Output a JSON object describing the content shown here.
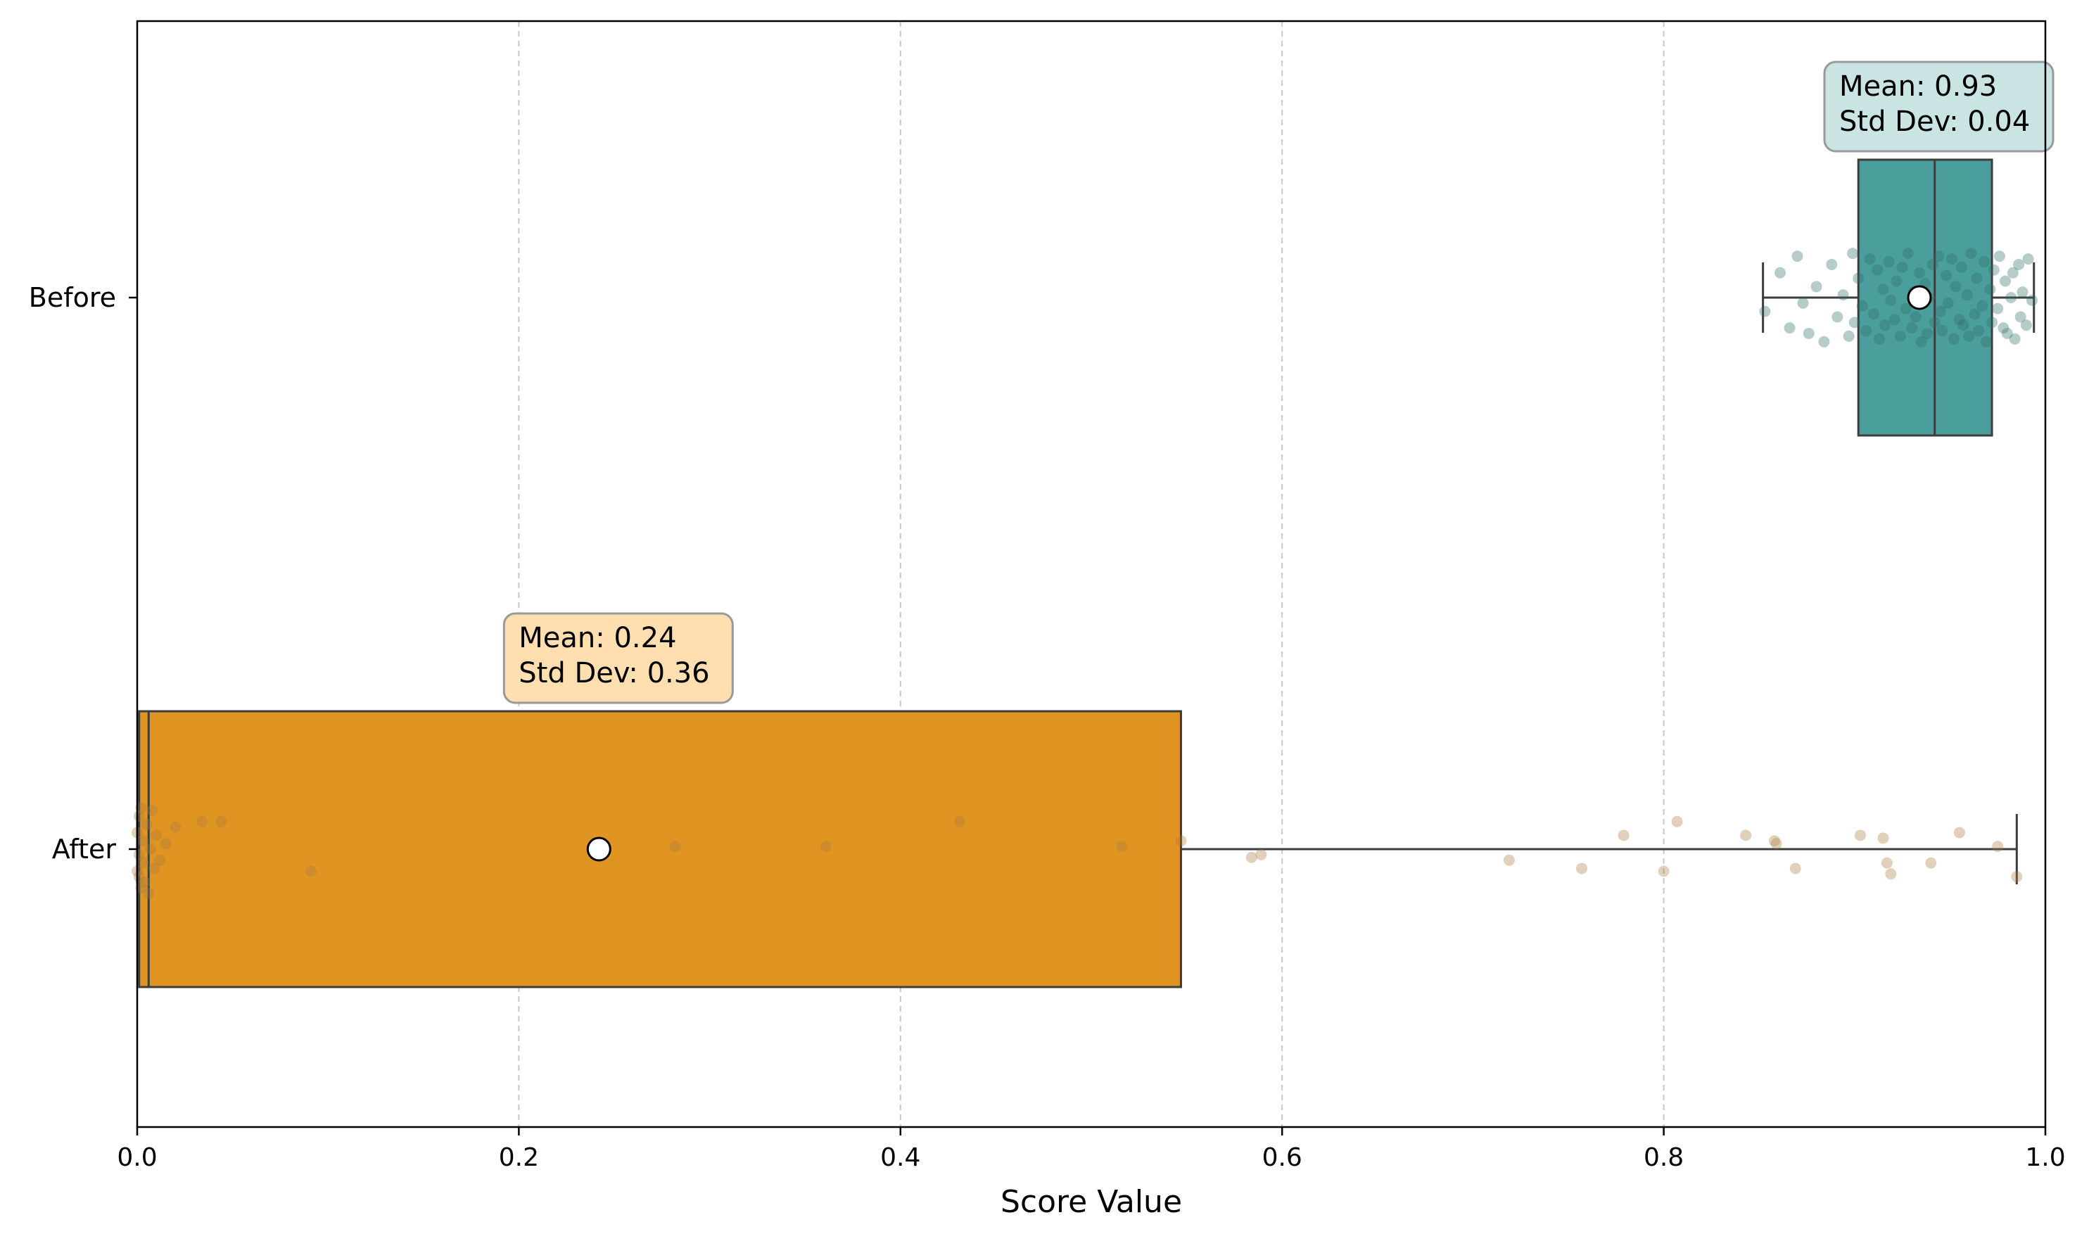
{
  "chart_data": {
    "type": "box",
    "orientation": "horizontal",
    "xlabel": "Score Value",
    "ylabel": "",
    "xlim": [
      0.0,
      1.0
    ],
    "xticks": [
      0.0,
      0.2,
      0.4,
      0.6,
      0.8,
      1.0
    ],
    "xtick_labels": [
      "0.0",
      "0.2",
      "0.4",
      "0.6",
      "0.8",
      "1.0"
    ],
    "grid": "x-dashed",
    "categories": [
      "Before",
      "After"
    ],
    "boxes": [
      {
        "category": "Before",
        "color": "#4a9e9b",
        "whisker_low": 0.852,
        "q1": 0.902,
        "median": 0.942,
        "q3": 0.972,
        "whisker_high": 0.994,
        "mean": 0.934,
        "annotation_lines": [
          "Mean: 0.93",
          "Std Dev: 0.04"
        ],
        "annotation_bg": "#c9e4e3"
      },
      {
        "category": "After",
        "color": "#e09422",
        "whisker_low": 0.0,
        "q1": 0.001,
        "median": 0.006,
        "q3": 0.547,
        "whisker_high": 0.985,
        "mean": 0.242,
        "annotation_lines": [
          "Mean: 0.24",
          "Std Dev: 0.36"
        ],
        "annotation_bg": "#ffdeb0"
      }
    ],
    "points": {
      "Before": {
        "color": "#2f6e67",
        "x": [
          0.853,
          0.861,
          0.866,
          0.87,
          0.873,
          0.876,
          0.88,
          0.884,
          0.888,
          0.891,
          0.894,
          0.897,
          0.899,
          0.9,
          0.902,
          0.904,
          0.906,
          0.908,
          0.91,
          0.912,
          0.913,
          0.915,
          0.916,
          0.918,
          0.919,
          0.921,
          0.922,
          0.924,
          0.925,
          0.927,
          0.928,
          0.93,
          0.931,
          0.932,
          0.934,
          0.935,
          0.937,
          0.938,
          0.939,
          0.941,
          0.942,
          0.944,
          0.945,
          0.946,
          0.948,
          0.949,
          0.951,
          0.952,
          0.953,
          0.955,
          0.956,
          0.957,
          0.959,
          0.96,
          0.961,
          0.963,
          0.964,
          0.965,
          0.967,
          0.968,
          0.969,
          0.971,
          0.972,
          0.973,
          0.975,
          0.976,
          0.978,
          0.979,
          0.98,
          0.982,
          0.983,
          0.984,
          0.986,
          0.987,
          0.988,
          0.99,
          0.991,
          0.993
        ],
        "jitter": [
          0.05,
          -0.09,
          0.11,
          -0.15,
          0.02,
          0.13,
          -0.04,
          0.16,
          -0.12,
          0.07,
          -0.01,
          0.14,
          -0.16,
          0.09,
          -0.07,
          0.03,
          0.12,
          -0.14,
          0.06,
          -0.1,
          0.15,
          -0.03,
          0.1,
          -0.13,
          0.01,
          0.08,
          -0.06,
          0.14,
          -0.11,
          0.04,
          -0.16,
          0.11,
          -0.02,
          0.07,
          -0.09,
          0.16,
          -0.05,
          0.13,
          0.0,
          -0.12,
          0.09,
          -0.15,
          0.05,
          0.12,
          -0.08,
          0.02,
          -0.14,
          0.15,
          -0.04,
          0.08,
          -0.11,
          0.1,
          -0.01,
          0.14,
          -0.16,
          0.06,
          -0.07,
          0.12,
          0.03,
          -0.13,
          0.16,
          -0.03,
          0.09,
          -0.1,
          0.04,
          -0.15,
          0.11,
          -0.06,
          0.13,
          0.0,
          -0.09,
          0.15,
          -0.12,
          0.07,
          -0.02,
          0.1,
          -0.14,
          0.01
        ]
      },
      "After": {
        "color": "#a87c3f",
        "x": [
          0.0,
          0.0,
          0.001,
          0.001,
          0.001,
          0.002,
          0.002,
          0.003,
          0.003,
          0.004,
          0.005,
          0.006,
          0.007,
          0.008,
          0.009,
          0.01,
          0.012,
          0.015,
          0.02,
          0.034,
          0.044,
          0.091,
          0.282,
          0.361,
          0.431,
          0.516,
          0.547,
          0.584,
          0.589,
          0.719,
          0.757,
          0.779,
          0.8,
          0.807,
          0.843,
          0.858,
          0.859,
          0.869,
          0.903,
          0.915,
          0.917,
          0.919,
          0.94,
          0.955,
          0.975,
          0.985
        ],
        "jitter": [
          0.08,
          -0.06,
          0.1,
          -0.12,
          0.02,
          0.14,
          -0.15,
          0.05,
          -0.03,
          0.12,
          -0.09,
          0.16,
          0.0,
          -0.14,
          0.07,
          -0.05,
          0.04,
          -0.02,
          -0.08,
          -0.1,
          -0.1,
          0.08,
          -0.01,
          -0.01,
          -0.1,
          -0.01,
          -0.03,
          0.03,
          0.02,
          0.04,
          0.07,
          -0.05,
          0.08,
          -0.1,
          -0.05,
          -0.03,
          -0.02,
          0.07,
          -0.05,
          -0.04,
          0.05,
          0.09,
          0.05,
          -0.06,
          -0.01,
          0.1
        ]
      }
    }
  }
}
